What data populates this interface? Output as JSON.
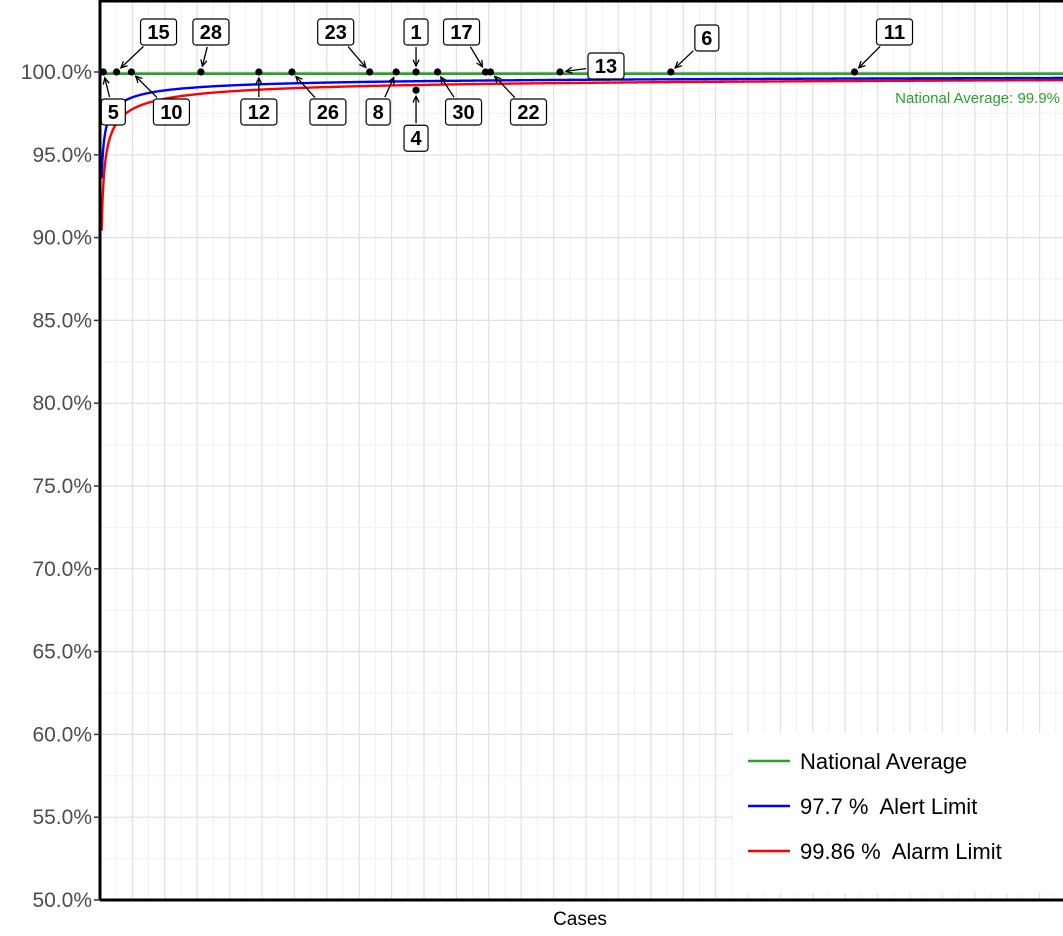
{
  "chart_data": {
    "type": "line",
    "xlabel": "Cases",
    "ylabel": "",
    "ylim": [
      50,
      100
    ],
    "yticks": [
      "50.0%",
      "55.0%",
      "60.0%",
      "65.0%",
      "70.0%",
      "75.0%",
      "80.0%",
      "85.0%",
      "90.0%",
      "95.0%",
      "100.0%"
    ],
    "grid": true,
    "national_average": 99.9,
    "annotation": "National Average: 99.9%",
    "colors": {
      "national": "#2ca02c",
      "alert": "#0000ff",
      "alarm": "#ff0000",
      "points": "#000000"
    },
    "series": [
      {
        "name": "National Average",
        "color": "#2ca02c"
      },
      {
        "name": "97.7 %  Alert Limit",
        "color": "#0000ff"
      },
      {
        "name": "99.86 %  Alarm Limit",
        "color": "#ff0000"
      }
    ],
    "points": [
      {
        "label": "5",
        "x": 2,
        "y": 100
      },
      {
        "label": "15",
        "x": 10,
        "y": 100
      },
      {
        "label": "10",
        "x": 19,
        "y": 100
      },
      {
        "label": "28",
        "x": 61,
        "y": 100
      },
      {
        "label": "12",
        "x": 96,
        "y": 100
      },
      {
        "label": "26",
        "x": 116,
        "y": 100
      },
      {
        "label": "23",
        "x": 163,
        "y": 100
      },
      {
        "label": "8",
        "x": 179,
        "y": 100
      },
      {
        "label": "1",
        "x": 191,
        "y": 100
      },
      {
        "label": "4",
        "x": 191,
        "y": 98.9
      },
      {
        "label": "30",
        "x": 204,
        "y": 100
      },
      {
        "label": "17",
        "x": 233,
        "y": 100
      },
      {
        "label": "22",
        "x": 236,
        "y": 100
      },
      {
        "label": "13",
        "x": 278,
        "y": 100
      },
      {
        "label": "6",
        "x": 345,
        "y": 100
      },
      {
        "label": "11",
        "x": 456,
        "y": 100
      }
    ],
    "legend": {
      "position": "bottom-right",
      "entries": [
        "National Average",
        "97.7 %  Alert Limit",
        "99.86 %  Alarm Limit"
      ]
    }
  }
}
